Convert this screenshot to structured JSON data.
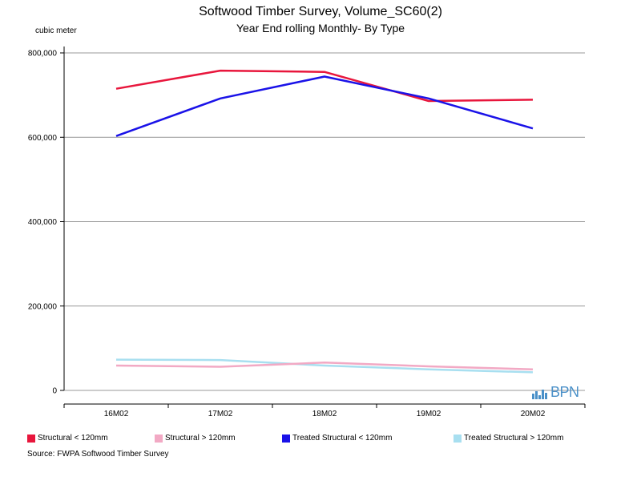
{
  "chart_data": {
    "type": "line",
    "title": "Softwood Timber Survey, Volume_SC60(2)",
    "subtitle": "Year End rolling Monthly- By Type",
    "ylabel": "cubic meter",
    "xlabel": "",
    "categories": [
      "16M02",
      "17M02",
      "18M02",
      "19M02",
      "20M02"
    ],
    "ylim": [
      0,
      800000
    ],
    "yticks": [
      0,
      200000,
      400000,
      600000,
      800000
    ],
    "ytick_labels": [
      "0",
      "200,000",
      "400,000",
      "600,000",
      "800,000"
    ],
    "grid": "horizontal",
    "legend_position": "bottom",
    "series": [
      {
        "name": "Structural < 120mm",
        "color": "#e8163c",
        "values": [
          715000,
          758000,
          755000,
          686000,
          689000
        ]
      },
      {
        "name": "Structural > 120mm",
        "color": "#f2a9c4",
        "values": [
          59000,
          56000,
          66000,
          57000,
          50000
        ]
      },
      {
        "name": "Treated Structural < 120mm",
        "color": "#1a12e8",
        "values": [
          603000,
          692000,
          744000,
          692000,
          621000
        ]
      },
      {
        "name": "Treated Structural > 120mm",
        "color": "#a8dff0",
        "values": [
          73000,
          72000,
          59000,
          50000,
          43000
        ]
      }
    ]
  },
  "source": "Source: FWPA Softwood Timber Survey",
  "logo_text": "BPN"
}
